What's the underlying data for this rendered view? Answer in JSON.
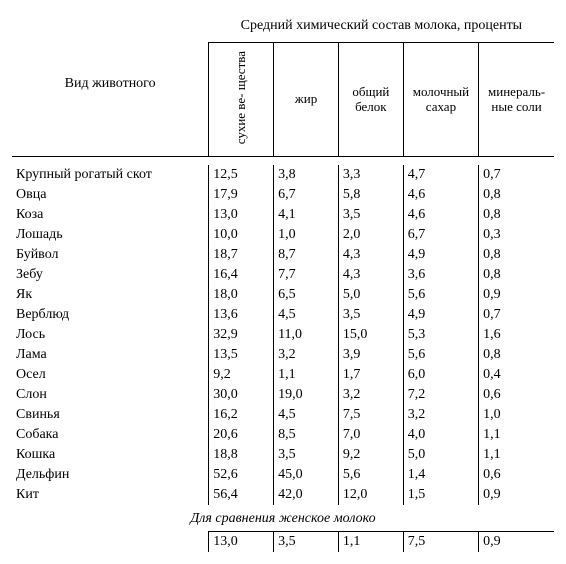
{
  "header": {
    "animal_label": "Вид животного",
    "group_label": "Средний химический состав молока, проценты",
    "columns": {
      "c1": "сухие ве-\nщества",
      "c2": "жир",
      "c3": "общий\nбелок",
      "c4": "молочный\nсахар",
      "c5": "минераль-\nные соли"
    }
  },
  "rows": [
    {
      "name": "Крупный рогатый скот",
      "v": [
        "12,5",
        "3,8",
        "3,3",
        "4,7",
        "0,7"
      ]
    },
    {
      "name": "Овца",
      "v": [
        "17,9",
        "6,7",
        "5,8",
        "4,6",
        "0,8"
      ]
    },
    {
      "name": "Коза",
      "v": [
        "13,0",
        "4,1",
        "3,5",
        "4,6",
        "0,8"
      ]
    },
    {
      "name": "Лошадь",
      "v": [
        "10,0",
        "1,0",
        "2,0",
        "6,7",
        "0,3"
      ]
    },
    {
      "name": "Буйвол",
      "v": [
        "18,7",
        "8,7",
        "4,3",
        "4,9",
        "0,8"
      ]
    },
    {
      "name": "Зебу",
      "v": [
        "16,4",
        "7,7",
        "4,3",
        "3,6",
        "0,8"
      ]
    },
    {
      "name": "Як",
      "v": [
        "18,0",
        "6,5",
        "5,0",
        "5,6",
        "0,9"
      ]
    },
    {
      "name": "Верблюд",
      "v": [
        "13,6",
        "4,5",
        "3,5",
        "4,9",
        "0,7"
      ]
    },
    {
      "name": "Лось",
      "v": [
        "32,9",
        "11,0",
        "15,0",
        "5,3",
        "1,6"
      ]
    },
    {
      "name": "Лама",
      "v": [
        "13,5",
        "3,2",
        "3,9",
        "5,6",
        "0,8"
      ]
    },
    {
      "name": "Осел",
      "v": [
        "9,2",
        "1,1",
        "1,7",
        "6,0",
        "0,4"
      ]
    },
    {
      "name": "Слон",
      "v": [
        "30,0",
        "19,0",
        "3,2",
        "7,2",
        "0,6"
      ]
    },
    {
      "name": "Свинья",
      "v": [
        "16,2",
        "4,5",
        "7,5",
        "3,2",
        "1,0"
      ]
    },
    {
      "name": "Собака",
      "v": [
        "20,6",
        "8,5",
        "7,0",
        "4,0",
        "1,1"
      ]
    },
    {
      "name": "Кошка",
      "v": [
        "18,8",
        "3,5",
        "9,2",
        "5,0",
        "1,1"
      ]
    },
    {
      "name": "Дельфин",
      "v": [
        "52,6",
        "45,0",
        "5,6",
        "1,4",
        "0,6"
      ]
    },
    {
      "name": "Кит",
      "v": [
        "56,4",
        "42,0",
        "12,0",
        "1,5",
        "0,9"
      ]
    }
  ],
  "comparison": {
    "label": "Для сравнения женское молоко",
    "v": [
      "13,0",
      "3,5",
      "1,1",
      "7,5",
      "0,9"
    ]
  }
}
